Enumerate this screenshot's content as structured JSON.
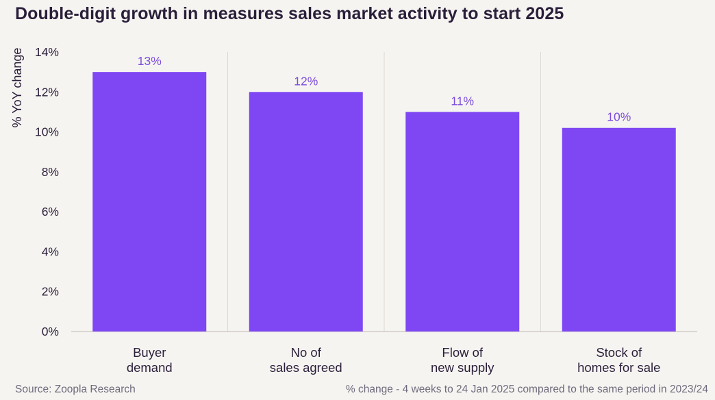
{
  "chart_data": {
    "type": "bar",
    "title": "Double-digit growth in measures sales market activity to start 2025",
    "ylabel": "% YoY change",
    "xlabel": "",
    "categories": [
      [
        "Buyer",
        "demand"
      ],
      [
        "No of",
        "sales agreed"
      ],
      [
        "Flow of",
        "new supply"
      ],
      [
        "Stock of",
        "homes for sale"
      ]
    ],
    "values": [
      13,
      12,
      11,
      10.2
    ],
    "data_labels": [
      "13%",
      "12%",
      "11%",
      "10%"
    ],
    "yticks": [
      "0%",
      "2%",
      "4%",
      "6%",
      "8%",
      "10%",
      "12%",
      "14%"
    ],
    "ylim": [
      0,
      14
    ],
    "grid": false,
    "bar_color": "#7e47f3",
    "label_color": "#7c4ddb"
  },
  "footer": {
    "source": "Source: Zoopla Research",
    "note": "% change - 4 weeks to 24 Jan 2025 compared to the same period in 2023/24"
  }
}
